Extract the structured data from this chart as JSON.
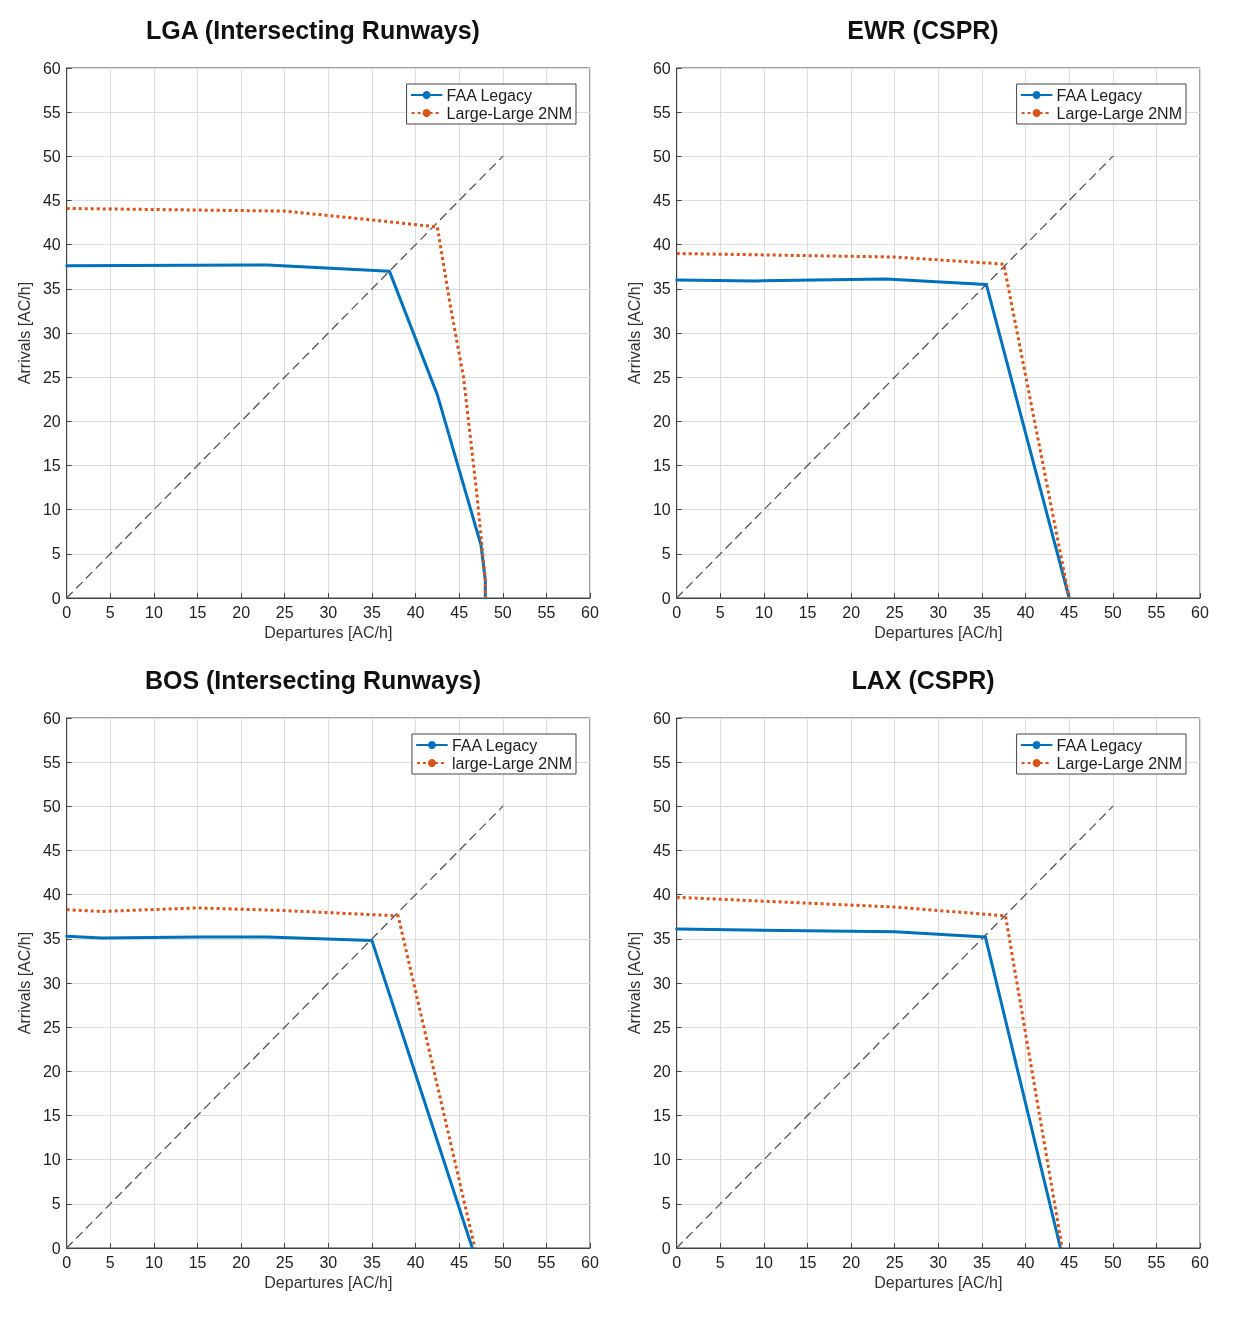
{
  "chart_data": [
    {
      "type": "line",
      "title": "LGA (Intersecting Runways)",
      "xlabel": "Departures [AC/h]",
      "ylabel": "Arrivals [AC/h]",
      "xlim": [
        0,
        60
      ],
      "ylim": [
        0,
        60
      ],
      "xticks": [
        0,
        5,
        10,
        15,
        20,
        25,
        30,
        35,
        40,
        45,
        50,
        55,
        60
      ],
      "yticks": [
        0,
        5,
        10,
        15,
        20,
        25,
        30,
        35,
        40,
        45,
        50,
        55,
        60
      ],
      "grid": true,
      "legend": "top right",
      "marker": "none",
      "series": [
        {
          "name": "FAA Legacy",
          "color": "#0072bd",
          "line_style": "solid",
          "x": [
            0,
            23,
            37,
            42.5,
            47.5,
            48,
            48
          ],
          "values": [
            37.6,
            37.7,
            37,
            23,
            6,
            2,
            0
          ]
        },
        {
          "name": "Large-Large 2NM",
          "color": "#d95319",
          "line_style": "dotted",
          "x": [
            0,
            25,
            35,
            42.5,
            44,
            45.5,
            47,
            48,
            48
          ],
          "values": [
            44.1,
            43.8,
            42.8,
            42,
            33,
            25,
            12,
            2,
            0
          ]
        },
        {
          "color": "#555555",
          "line_style": "dashed",
          "x": [
            0,
            50
          ],
          "values": [
            0,
            50
          ]
        }
      ]
    },
    {
      "type": "line",
      "title": "EWR (CSPR)",
      "xlabel": "Departures [AC/h]",
      "ylabel": "Arrivals [AC/h]",
      "xlim": [
        0,
        60
      ],
      "ylim": [
        0,
        60
      ],
      "xticks": [
        0,
        5,
        10,
        15,
        20,
        25,
        30,
        35,
        40,
        45,
        50,
        55,
        60
      ],
      "yticks": [
        0,
        5,
        10,
        15,
        20,
        25,
        30,
        35,
        40,
        45,
        50,
        55,
        60
      ],
      "grid": true,
      "legend": "top right",
      "marker": "none",
      "series": [
        {
          "name": "FAA Legacy",
          "color": "#0072bd",
          "line_style": "solid",
          "x": [
            0,
            9,
            24,
            35.5,
            45
          ],
          "values": [
            36,
            35.9,
            36.1,
            35.5,
            0
          ]
        },
        {
          "name": "Large-Large 2NM",
          "color": "#d95319",
          "line_style": "dotted",
          "x": [
            0,
            25,
            37.5,
            45
          ],
          "values": [
            39,
            38.6,
            37.8,
            0
          ]
        },
        {
          "color": "#555555",
          "line_style": "dashed",
          "x": [
            0,
            50
          ],
          "values": [
            0,
            50
          ]
        }
      ]
    },
    {
      "type": "line",
      "title": "BOS (Intersecting Runways)",
      "xlabel": "Departures [AC/h]",
      "ylabel": "Arrivals [AC/h]",
      "xlim": [
        0,
        60
      ],
      "ylim": [
        0,
        60
      ],
      "xticks": [
        0,
        5,
        10,
        15,
        20,
        25,
        30,
        35,
        40,
        45,
        50,
        55,
        60
      ],
      "yticks": [
        0,
        5,
        10,
        15,
        20,
        25,
        30,
        35,
        40,
        45,
        50,
        55,
        60
      ],
      "grid": true,
      "legend": "top right",
      "marker": "none",
      "series": [
        {
          "name": "FAA Legacy",
          "color": "#0072bd",
          "line_style": "solid",
          "x": [
            0,
            4,
            15,
            23,
            35,
            46.5
          ],
          "values": [
            35.3,
            35.1,
            35.2,
            35.2,
            34.8,
            0
          ]
        },
        {
          "name": "large-Large 2NM",
          "color": "#d95319",
          "line_style": "dotted",
          "x": [
            0,
            4,
            15,
            25,
            38,
            46.8
          ],
          "values": [
            38.3,
            38.1,
            38.5,
            38.2,
            37.6,
            0
          ]
        },
        {
          "color": "#555555",
          "line_style": "dashed",
          "x": [
            0,
            50
          ],
          "values": [
            0,
            50
          ]
        }
      ]
    },
    {
      "type": "line",
      "title": "LAX (CSPR)",
      "xlabel": "Departures [AC/h]",
      "ylabel": "Arrivals [AC/h]",
      "xlim": [
        0,
        60
      ],
      "ylim": [
        0,
        60
      ],
      "xticks": [
        0,
        5,
        10,
        15,
        20,
        25,
        30,
        35,
        40,
        45,
        50,
        55,
        60
      ],
      "yticks": [
        0,
        5,
        10,
        15,
        20,
        25,
        30,
        35,
        40,
        45,
        50,
        55,
        60
      ],
      "grid": true,
      "legend": "top right",
      "marker": "none",
      "series": [
        {
          "name": "FAA Legacy",
          "color": "#0072bd",
          "line_style": "solid",
          "x": [
            0,
            25,
            35.4,
            44
          ],
          "values": [
            36.1,
            35.8,
            35.2,
            0
          ]
        },
        {
          "name": "Large-Large 2NM",
          "color": "#d95319",
          "line_style": "dotted",
          "x": [
            0,
            25,
            37.7,
            44.2
          ],
          "values": [
            39.7,
            38.6,
            37.6,
            0
          ]
        },
        {
          "color": "#555555",
          "line_style": "dashed",
          "x": [
            0,
            50
          ],
          "values": [
            0,
            50
          ]
        }
      ]
    }
  ]
}
